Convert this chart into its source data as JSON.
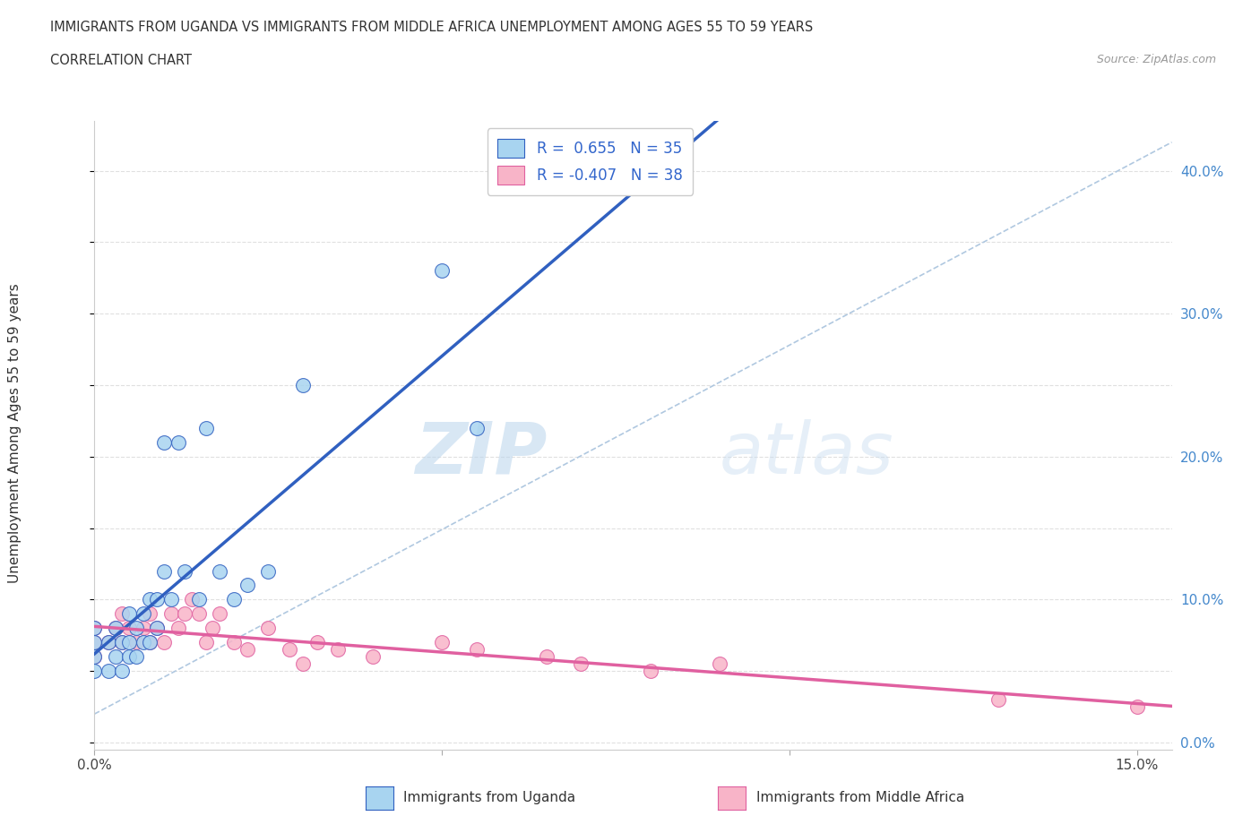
{
  "title_line1": "IMMIGRANTS FROM UGANDA VS IMMIGRANTS FROM MIDDLE AFRICA UNEMPLOYMENT AMONG AGES 55 TO 59 YEARS",
  "title_line2": "CORRELATION CHART",
  "source": "Source: ZipAtlas.com",
  "ylabel": "Unemployment Among Ages 55 to 59 years",
  "right_ytick_values": [
    0.0,
    0.1,
    0.2,
    0.3,
    0.4
  ],
  "xlim": [
    0.0,
    0.155
  ],
  "ylim": [
    -0.005,
    0.435
  ],
  "legend_r1": "R =  0.655",
  "legend_n1": "N = 35",
  "legend_r2": "R = -0.407",
  "legend_n2": "N = 38",
  "watermark_zip": "ZIP",
  "watermark_atlas": "atlas",
  "uganda_color": "#a8d4f0",
  "middle_africa_color": "#f8b4c8",
  "uganda_line_color": "#3060c0",
  "middle_africa_line_color": "#e060a0",
  "uganda_points_x": [
    0.0,
    0.0,
    0.0,
    0.0,
    0.002,
    0.002,
    0.003,
    0.003,
    0.004,
    0.004,
    0.005,
    0.005,
    0.005,
    0.006,
    0.006,
    0.007,
    0.007,
    0.008,
    0.008,
    0.009,
    0.009,
    0.01,
    0.01,
    0.011,
    0.012,
    0.013,
    0.015,
    0.016,
    0.018,
    0.02,
    0.022,
    0.025,
    0.03,
    0.05,
    0.055
  ],
  "uganda_points_y": [
    0.05,
    0.06,
    0.07,
    0.08,
    0.05,
    0.07,
    0.06,
    0.08,
    0.05,
    0.07,
    0.06,
    0.07,
    0.09,
    0.06,
    0.08,
    0.07,
    0.09,
    0.07,
    0.1,
    0.08,
    0.1,
    0.12,
    0.21,
    0.1,
    0.21,
    0.12,
    0.1,
    0.22,
    0.12,
    0.1,
    0.11,
    0.12,
    0.25,
    0.33,
    0.22
  ],
  "middle_africa_points_x": [
    0.0,
    0.0,
    0.0,
    0.002,
    0.003,
    0.004,
    0.004,
    0.005,
    0.006,
    0.007,
    0.008,
    0.008,
    0.009,
    0.01,
    0.011,
    0.012,
    0.013,
    0.014,
    0.015,
    0.016,
    0.017,
    0.018,
    0.02,
    0.022,
    0.025,
    0.028,
    0.03,
    0.032,
    0.035,
    0.04,
    0.05,
    0.055,
    0.065,
    0.07,
    0.08,
    0.09,
    0.13,
    0.15
  ],
  "middle_africa_points_y": [
    0.07,
    0.08,
    0.06,
    0.07,
    0.08,
    0.07,
    0.09,
    0.08,
    0.07,
    0.08,
    0.07,
    0.09,
    0.08,
    0.07,
    0.09,
    0.08,
    0.09,
    0.1,
    0.09,
    0.07,
    0.08,
    0.09,
    0.07,
    0.065,
    0.08,
    0.065,
    0.055,
    0.07,
    0.065,
    0.06,
    0.07,
    0.065,
    0.06,
    0.055,
    0.05,
    0.055,
    0.03,
    0.025
  ],
  "background_color": "#ffffff",
  "grid_color": "#e0e0e0",
  "diag_line_color": "#b0c8e0"
}
